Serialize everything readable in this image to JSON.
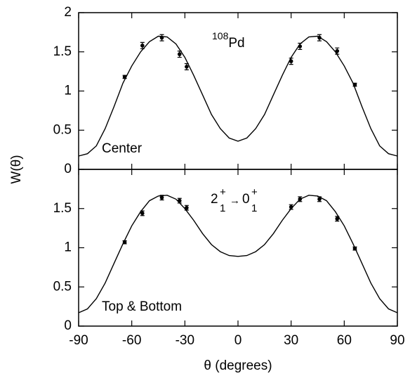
{
  "chart_data": [
    {
      "type": "scatter",
      "label": "Center",
      "annotation": {
        "mass": "108",
        "element": "Pd"
      },
      "ylabel": "W(θ)",
      "ylim": [
        0,
        2
      ],
      "yticks": [
        0,
        0.5,
        1,
        1.5,
        2
      ],
      "points": {
        "x": [
          -64,
          -54,
          -43,
          -33,
          -29,
          30,
          35,
          46,
          56,
          66
        ],
        "values": [
          1.18,
          1.58,
          1.68,
          1.47,
          1.31,
          1.38,
          1.57,
          1.68,
          1.51,
          1.08
        ],
        "errors": [
          0.02,
          0.04,
          0.04,
          0.04,
          0.04,
          0.04,
          0.04,
          0.04,
          0.04,
          0.02
        ]
      },
      "fit": {
        "x": [
          -90,
          -85,
          -80,
          -75,
          -70,
          -65,
          -60,
          -55,
          -50,
          -45,
          -40,
          -35,
          -30,
          -25,
          -20,
          -15,
          -10,
          -5,
          0,
          5,
          10,
          15,
          20,
          25,
          30,
          35,
          40,
          45,
          50,
          55,
          60,
          65,
          70,
          75,
          80,
          85,
          90
        ],
        "values": [
          0.17,
          0.2,
          0.3,
          0.52,
          0.8,
          1.1,
          1.32,
          1.5,
          1.63,
          1.7,
          1.69,
          1.6,
          1.43,
          1.2,
          0.95,
          0.7,
          0.52,
          0.4,
          0.36,
          0.4,
          0.52,
          0.7,
          0.95,
          1.2,
          1.43,
          1.6,
          1.69,
          1.7,
          1.63,
          1.5,
          1.32,
          1.1,
          0.8,
          0.52,
          0.3,
          0.2,
          0.17
        ]
      }
    },
    {
      "type": "scatter",
      "label": "Top & Bottom",
      "annotation": {
        "initial": "2",
        "initial_parity": "+",
        "initial_index": "1",
        "arrow": "→",
        "final": "0",
        "final_parity": "+",
        "final_index": "1"
      },
      "xlabel": "θ (degrees)",
      "xlim": [
        -90,
        90
      ],
      "xticks": [
        -90,
        -60,
        -30,
        0,
        30,
        60,
        90
      ],
      "ylim": [
        0,
        2
      ],
      "yticks": [
        0,
        0.5,
        1,
        1.5
      ],
      "points": {
        "x": [
          -64,
          -54,
          -43,
          -33,
          -29,
          30,
          35,
          46,
          56,
          66
        ],
        "values": [
          1.07,
          1.44,
          1.64,
          1.6,
          1.51,
          1.52,
          1.62,
          1.62,
          1.37,
          0.99
        ],
        "errors": [
          0.02,
          0.03,
          0.03,
          0.03,
          0.03,
          0.03,
          0.03,
          0.03,
          0.03,
          0.02
        ]
      },
      "fit": {
        "x": [
          -90,
          -85,
          -80,
          -75,
          -70,
          -65,
          -60,
          -55,
          -50,
          -45,
          -40,
          -35,
          -30,
          -25,
          -20,
          -15,
          -10,
          -5,
          0,
          5,
          10,
          15,
          20,
          25,
          30,
          35,
          40,
          45,
          50,
          55,
          60,
          65,
          70,
          75,
          80,
          85,
          90
        ],
        "values": [
          0.17,
          0.22,
          0.35,
          0.55,
          0.8,
          1.05,
          1.28,
          1.46,
          1.6,
          1.66,
          1.67,
          1.62,
          1.5,
          1.35,
          1.18,
          1.04,
          0.95,
          0.9,
          0.89,
          0.9,
          0.95,
          1.04,
          1.18,
          1.35,
          1.5,
          1.62,
          1.67,
          1.66,
          1.6,
          1.46,
          1.28,
          1.05,
          0.8,
          0.55,
          0.35,
          0.22,
          0.17
        ]
      }
    }
  ]
}
